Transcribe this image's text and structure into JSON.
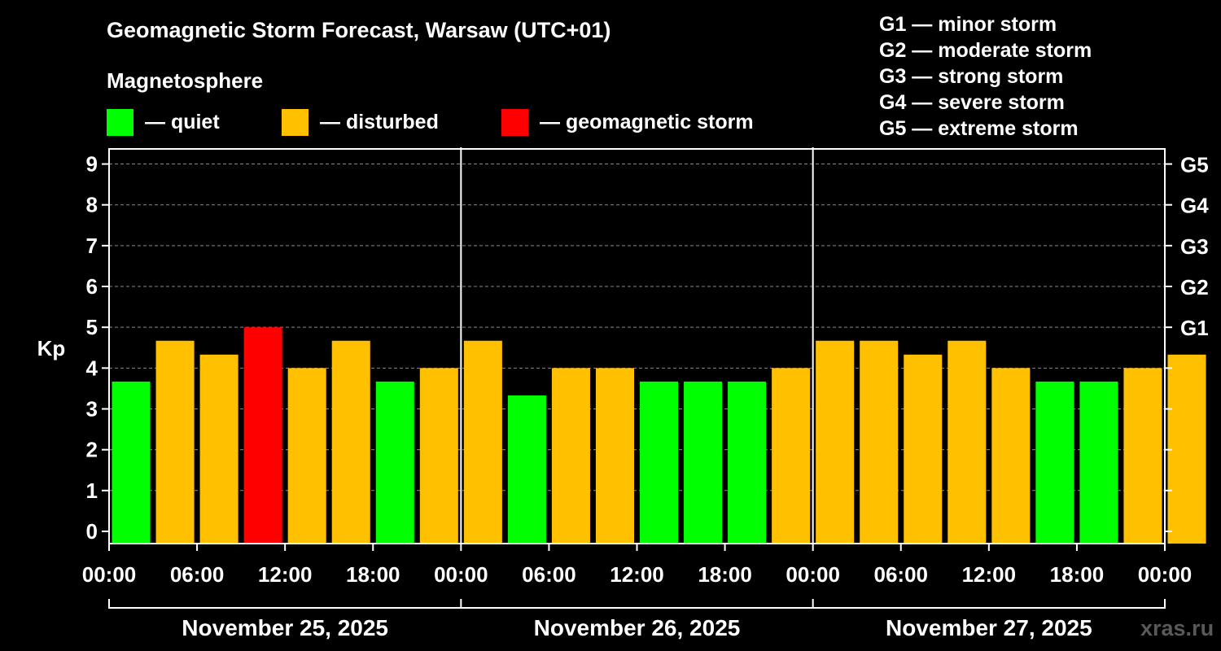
{
  "title": "Geomagnetic Storm Forecast, Warsaw (UTC+01)",
  "magnetosphere_label": "Magnetosphere",
  "legend": [
    {
      "label": "— quiet",
      "color": "#00ff00"
    },
    {
      "label": "— disturbed",
      "color": "#ffc000"
    },
    {
      "label": "— geomagnetic storm",
      "color": "#ff0000"
    }
  ],
  "g_legend": [
    "G1 — minor storm",
    "G2 — moderate storm",
    "G3 — strong storm",
    "G4 — severe storm",
    "G5 — extreme storm"
  ],
  "watermark": "xras.ru",
  "chart_data": {
    "type": "bar",
    "ylabel": "Kp",
    "ylim": [
      -0.3,
      9.37
    ],
    "yticks": [
      0,
      1,
      2,
      3,
      4,
      5,
      6,
      7,
      8,
      9
    ],
    "right_ticks": [
      {
        "value": 5,
        "label": "G1"
      },
      {
        "value": 6,
        "label": "G2"
      },
      {
        "value": 7,
        "label": "G3"
      },
      {
        "value": 8,
        "label": "G4"
      },
      {
        "value": 9,
        "label": "G5"
      }
    ],
    "x_ticks": [
      "00:00",
      "06:00",
      "12:00",
      "18:00",
      "00:00",
      "06:00",
      "12:00",
      "18:00",
      "00:00",
      "06:00",
      "12:00",
      "18:00",
      "00:00"
    ],
    "days": [
      "November 25, 2025",
      "November 26, 2025",
      "November 27, 2025"
    ],
    "interval_hours": 3,
    "values": [
      3.67,
      4.67,
      4.33,
      5.0,
      4.0,
      4.67,
      3.67,
      4.0,
      4.67,
      3.33,
      4.0,
      4.0,
      3.67,
      3.67,
      3.67,
      4.0,
      4.67,
      4.67,
      4.33,
      4.67,
      4.0,
      3.67,
      3.67,
      4.0,
      4.33
    ],
    "levels": [
      "quiet",
      "disturbed",
      "disturbed",
      "storm",
      "disturbed",
      "disturbed",
      "quiet",
      "disturbed",
      "disturbed",
      "quiet",
      "disturbed",
      "disturbed",
      "quiet",
      "quiet",
      "quiet",
      "disturbed",
      "disturbed",
      "disturbed",
      "disturbed",
      "disturbed",
      "disturbed",
      "quiet",
      "quiet",
      "disturbed",
      "disturbed"
    ],
    "colors": {
      "quiet": "#00ff00",
      "disturbed": "#ffc000",
      "storm": "#ff0000"
    }
  }
}
